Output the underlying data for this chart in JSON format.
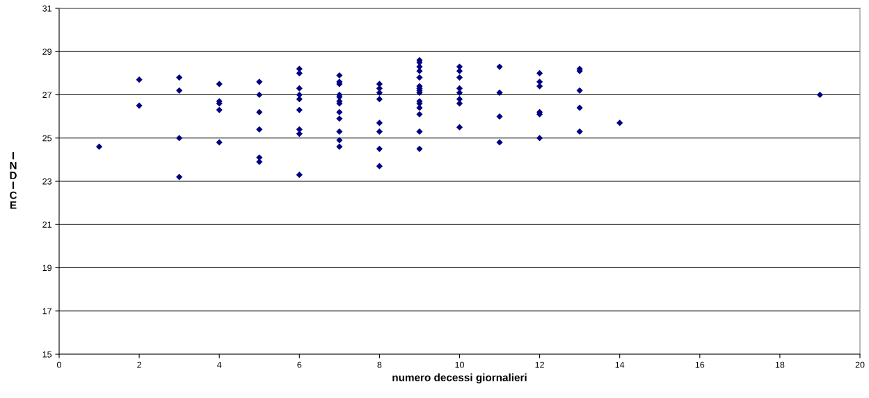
{
  "chart_data": {
    "type": "scatter",
    "xlabel": "numero decessi giornalieri",
    "ylabel": "I\nN\nD\nI\nC\nE",
    "marker": "diamond",
    "grid": "y",
    "xlim": [
      0,
      20
    ],
    "xticks": [
      0,
      2,
      4,
      6,
      8,
      10,
      12,
      14,
      16,
      18,
      20
    ],
    "ylim": [
      15,
      31
    ],
    "yticks": [
      15,
      17,
      19,
      21,
      23,
      25,
      27,
      29,
      31
    ],
    "series": [
      {
        "color": "#000080",
        "x": [
          1,
          2,
          2,
          3,
          3,
          3,
          3,
          4,
          4,
          4,
          4,
          4,
          5,
          5,
          5,
          5,
          5,
          5,
          6,
          6,
          6,
          6,
          6,
          6,
          6,
          6,
          6,
          7,
          7,
          7,
          7,
          7,
          7,
          7,
          7,
          7,
          7,
          7,
          7,
          8,
          8,
          8,
          8,
          8,
          8,
          8,
          8,
          9,
          9,
          9,
          9,
          9,
          9,
          9,
          9,
          9,
          9,
          9,
          9,
          9,
          9,
          9,
          10,
          10,
          10,
          10,
          10,
          10,
          10,
          10,
          11,
          11,
          11,
          11,
          12,
          12,
          12,
          12,
          12,
          12,
          13,
          13,
          13,
          13,
          13,
          14,
          19
        ],
        "values": [
          24.6,
          27.7,
          26.5,
          27.8,
          27.2,
          25.0,
          23.2,
          27.5,
          26.7,
          26.6,
          26.3,
          24.8,
          27.6,
          27.0,
          26.2,
          25.4,
          24.1,
          23.9,
          28.2,
          28.0,
          27.3,
          27.0,
          26.8,
          26.3,
          25.4,
          25.2,
          23.3,
          27.9,
          27.6,
          27.5,
          27.0,
          26.9,
          26.7,
          26.6,
          26.2,
          25.9,
          25.3,
          24.9,
          24.6,
          27.5,
          27.3,
          27.1,
          26.8,
          25.7,
          25.3,
          24.5,
          23.7,
          28.6,
          28.5,
          28.3,
          28.1,
          27.8,
          27.4,
          27.3,
          27.2,
          27.1,
          26.7,
          26.6,
          26.4,
          26.1,
          25.3,
          24.5,
          28.3,
          28.1,
          27.8,
          27.3,
          27.1,
          26.8,
          26.6,
          25.5,
          28.3,
          27.1,
          26.0,
          24.8,
          28.0,
          27.6,
          27.4,
          26.2,
          26.1,
          25.0,
          28.2,
          28.1,
          27.2,
          26.4,
          25.3,
          25.7,
          27.0
        ]
      }
    ]
  }
}
